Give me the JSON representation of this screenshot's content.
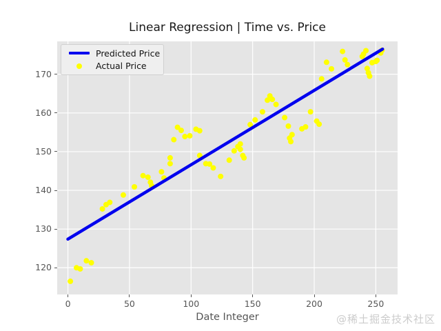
{
  "watermark": "@稀土掘金技术社区",
  "legend": {
    "items": [
      {
        "label": "Predicted Price",
        "swatch": "line",
        "color": "#0000ee"
      },
      {
        "label": "Actual Price",
        "swatch": "dot",
        "color": "#ffff00"
      }
    ]
  },
  "chart_data": {
    "type": "scatter",
    "title": "Linear Regression | Time vs. Price",
    "xlabel": "Date Integer",
    "ylabel": "",
    "x_ticks": [
      0,
      50,
      100,
      150,
      200,
      250
    ],
    "y_ticks": [
      120,
      130,
      140,
      150,
      160,
      170
    ],
    "xlim": [
      -8.7,
      267.7
    ],
    "ylim": [
      113.1,
      178.5
    ],
    "grid": true,
    "legend_position": "upper left",
    "style": {
      "plot_bg": "#e5e5e5",
      "grid_color": "#ffffff",
      "grid_width": 1.2,
      "line_color": "#0000ee",
      "line_width": 4.5,
      "marker_color": "#ffff00",
      "marker_diameter": 8,
      "tick_text_color": "#555555",
      "title_color": "#1a1a1a",
      "watermark_color": "#cccccc"
    },
    "series": [
      {
        "name": "Predicted Price",
        "type": "line",
        "x": [
          0,
          255.5
        ],
        "y": [
          127.4,
          176.5
        ]
      },
      {
        "name": "Actual Price",
        "type": "scatter",
        "points": [
          [
            2,
            116.5
          ],
          [
            7,
            120.0
          ],
          [
            10,
            119.7
          ],
          [
            15,
            121.8
          ],
          [
            19,
            121.3
          ],
          [
            28,
            135.2
          ],
          [
            31,
            136.3
          ],
          [
            34,
            136.9
          ],
          [
            45,
            138.8
          ],
          [
            54,
            140.9
          ],
          [
            61,
            143.8
          ],
          [
            65,
            143.4
          ],
          [
            67,
            142.1
          ],
          [
            68,
            141.2
          ],
          [
            76,
            144.8
          ],
          [
            78,
            143.2
          ],
          [
            83,
            146.9
          ],
          [
            83,
            148.4
          ],
          [
            86,
            153.1
          ],
          [
            89,
            156.3
          ],
          [
            92,
            155.5
          ],
          [
            95,
            153.9
          ],
          [
            99,
            154.1
          ],
          [
            104,
            155.8
          ],
          [
            107,
            155.4
          ],
          [
            107,
            149.0
          ],
          [
            112,
            146.9
          ],
          [
            115,
            146.8
          ],
          [
            118,
            145.8
          ],
          [
            124,
            143.6
          ],
          [
            131,
            147.8
          ],
          [
            135,
            150.2
          ],
          [
            138,
            151.3
          ],
          [
            140,
            150.6
          ],
          [
            140,
            152.0
          ],
          [
            142,
            149.0
          ],
          [
            143,
            148.4
          ],
          [
            148,
            157.0
          ],
          [
            152,
            158.2
          ],
          [
            158,
            160.3
          ],
          [
            162,
            163.3
          ],
          [
            164,
            164.4
          ],
          [
            166,
            163.5
          ],
          [
            169,
            162.2
          ],
          [
            176,
            158.8
          ],
          [
            179,
            156.6
          ],
          [
            180,
            153.5
          ],
          [
            181,
            152.6
          ],
          [
            182,
            154.4
          ],
          [
            190,
            155.9
          ],
          [
            193,
            156.4
          ],
          [
            197,
            160.3
          ],
          [
            202,
            157.9
          ],
          [
            204,
            157.1
          ],
          [
            206,
            168.8
          ],
          [
            210,
            173.1
          ],
          [
            214,
            171.4
          ],
          [
            223,
            175.9
          ],
          [
            225,
            173.7
          ],
          [
            227,
            172.5
          ],
          [
            239,
            174.6
          ],
          [
            240,
            175.2
          ],
          [
            242,
            176.1
          ],
          [
            243,
            171.5
          ],
          [
            244,
            170.4
          ],
          [
            245,
            169.5
          ],
          [
            247,
            173.0
          ],
          [
            250,
            173.3
          ],
          [
            251,
            173.6
          ],
          [
            254,
            175.5
          ],
          [
            255,
            176.2
          ]
        ]
      }
    ]
  }
}
